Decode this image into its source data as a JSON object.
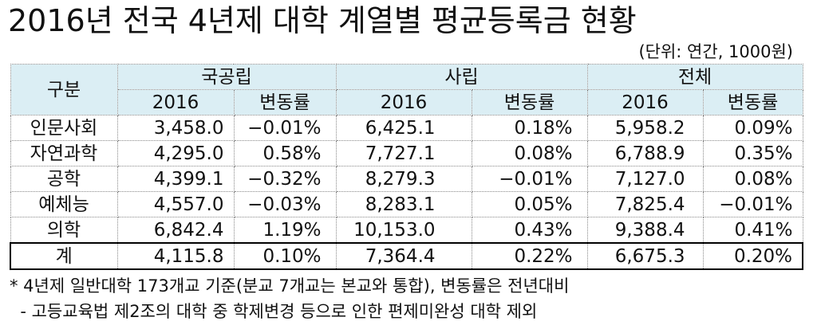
{
  "title": "2016년 전국 4년제 대학 계열별 평균등록금 현황",
  "unit": "(단위: 연간, 1000원)",
  "header": {
    "category": "구분",
    "groups": [
      "국공립",
      "사립",
      "전체"
    ],
    "sub": [
      "2016",
      "변동률"
    ]
  },
  "rows": [
    {
      "name": "인문사회",
      "v": [
        "3,458.0",
        "−0.01%",
        "6,425.1",
        "0.18%",
        "5,958.2",
        "0.09%"
      ]
    },
    {
      "name": "자연과학",
      "v": [
        "4,295.0",
        "0.58%",
        "7,727.1",
        "0.08%",
        "6,788.9",
        "0.35%"
      ]
    },
    {
      "name": "공학",
      "v": [
        "4,399.1",
        "−0.32%",
        "8,279.3",
        "−0.01%",
        "7,127.0",
        "0.08%"
      ]
    },
    {
      "name": "예체능",
      "v": [
        "4,557.0",
        "−0.03%",
        "8,283.1",
        "0.05%",
        "7,825.4",
        "−0.01%"
      ]
    },
    {
      "name": "의학",
      "v": [
        "6,842.4",
        "1.19%",
        "10,153.0",
        "0.43%",
        "9,388.4",
        "0.41%"
      ]
    },
    {
      "name": "계",
      "v": [
        "4,115.8",
        "0.10%",
        "7,364.4",
        "0.22%",
        "6,675.3",
        "0.20%"
      ]
    }
  ],
  "notes": [
    "* 4년제 일반대학 173개교 기준(분교 7개교는 본교와 통합), 변동률은 전년대비",
    "  - 고등교육법 제2조의 대학 중 학제변경 등으로 인한 편제미완성 대학 제외"
  ]
}
